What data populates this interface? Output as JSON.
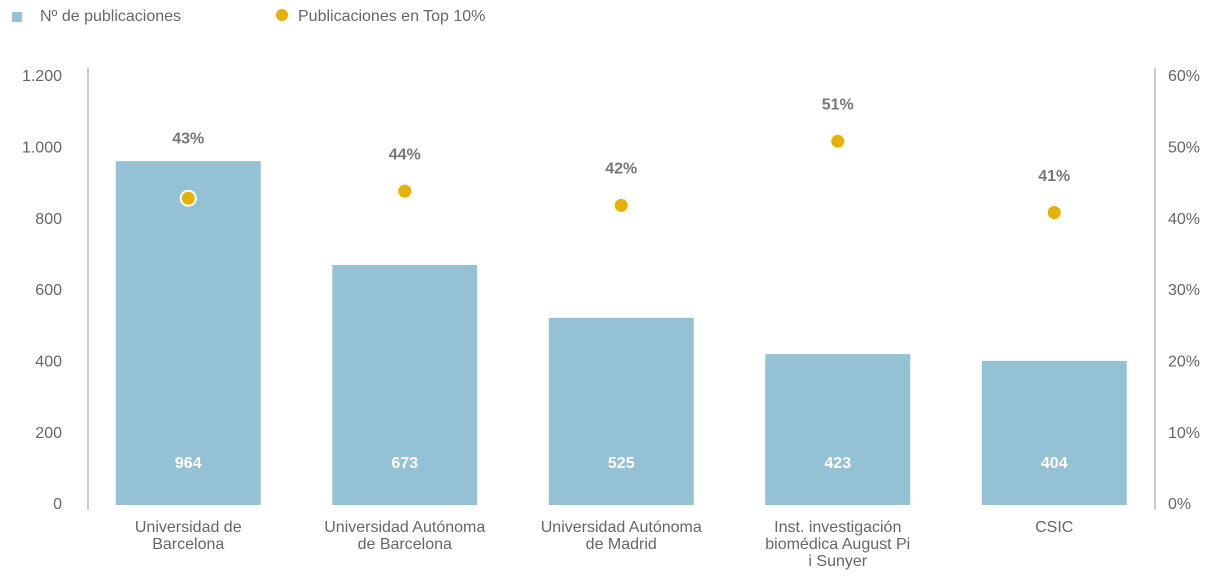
{
  "chart_data": {
    "type": "bar",
    "categories": [
      "Universidad de Barcelona",
      "Universidad Autónoma de Barcelona",
      "Universidad Autónoma de Madrid",
      "Inst. investigación biomédica August Pi i Sunyer",
      "CSIC"
    ],
    "series": [
      {
        "name": "Nº de publicaciones",
        "type": "bar",
        "color": "#94c1d4",
        "values": [
          964,
          673,
          525,
          423,
          404
        ]
      },
      {
        "name": "Publicaciones en Top 10%",
        "type": "scatter",
        "axis": "y2",
        "color": "#e8b000",
        "values": [
          43,
          44,
          42,
          51,
          41
        ],
        "value_labels": [
          "43%",
          "44%",
          "42%",
          "51%",
          "41%"
        ]
      }
    ],
    "ylim": [
      0,
      1200
    ],
    "yticks": [
      0,
      200,
      400,
      600,
      800,
      {
        "value": 1000,
        "label": "1.000"
      },
      {
        "value": 1200,
        "label": "1.200"
      }
    ],
    "y2lim": [
      0,
      60
    ],
    "y2ticks": [
      {
        "value": 0,
        "label": "0%"
      },
      {
        "value": 10,
        "label": "10%"
      },
      {
        "value": 20,
        "label": "20%"
      },
      {
        "value": 30,
        "label": "30%"
      },
      {
        "value": 40,
        "label": "40%"
      },
      {
        "value": 50,
        "label": "50%"
      },
      {
        "value": 60,
        "label": "60%"
      }
    ],
    "legend": "top-left"
  }
}
